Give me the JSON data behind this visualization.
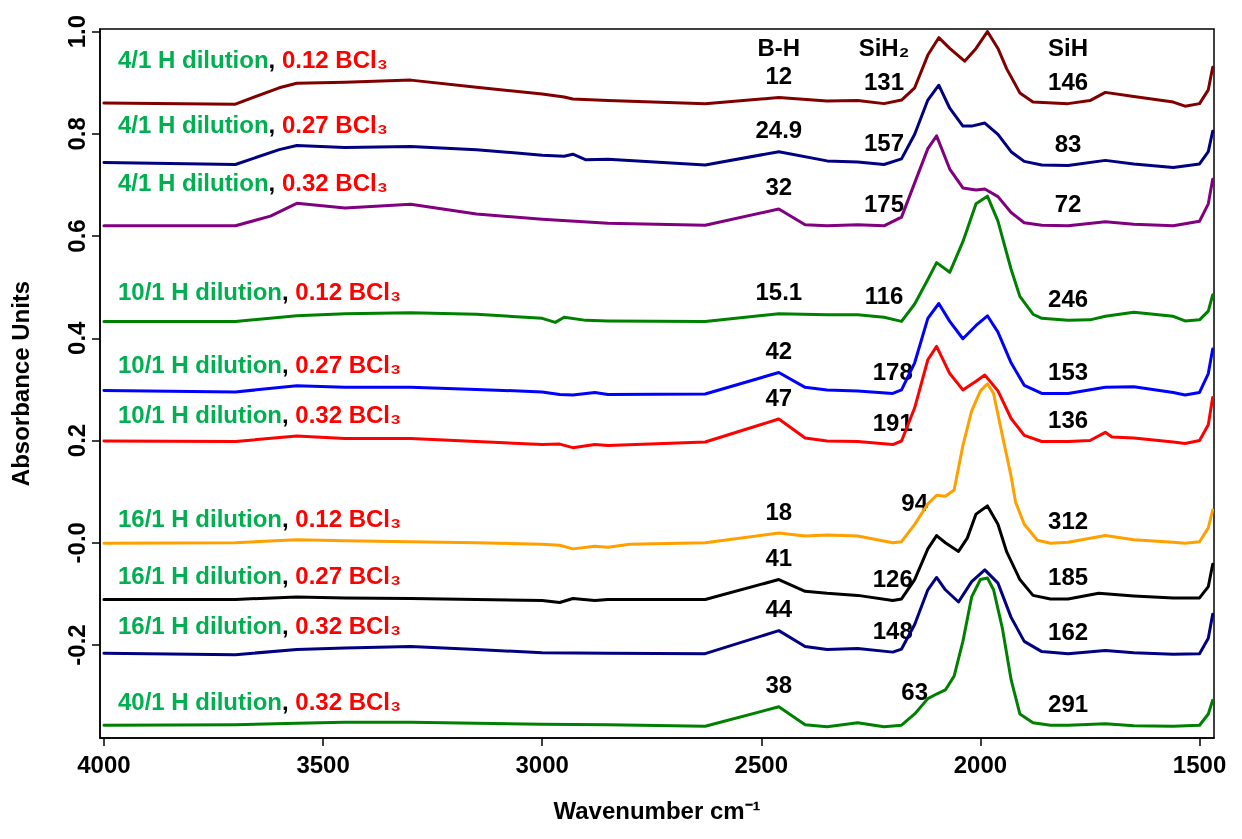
{
  "chart_data": {
    "type": "line",
    "xlabel": "Wavenumber cm⁻¹",
    "ylabel": "Absorbance Units",
    "xlim": [
      4009,
      1467
    ],
    "xticks": [
      4000,
      3500,
      3000,
      2500,
      2000,
      1500
    ],
    "ylim": [
      -0.382,
      1.005
    ],
    "yticks": [
      {
        "value": -0.2,
        "label": "-0.2"
      },
      {
        "value": 0,
        "label": "-0.0"
      },
      {
        "value": 0.2,
        "label": "0.2"
      },
      {
        "value": 0.4,
        "label": "0.4"
      },
      {
        "value": 0.6,
        "label": "0.6"
      },
      {
        "value": 0.8,
        "label": "0.8"
      },
      {
        "value": 1.0,
        "label": "1.0"
      }
    ],
    "grid": false,
    "legend": false,
    "marker": "none",
    "line_style": "solid",
    "series": [
      {
        "name": "4/1 H dilution, 0.12 BCl₃",
        "color": "#800000",
        "x": [
          4000,
          3700,
          3600,
          3560,
          3450,
          3300,
          3150,
          3000,
          2950,
          2930,
          2850,
          2628,
          2460,
          2350,
          2280,
          2220,
          2180,
          2150,
          2120,
          2095,
          2070,
          2036,
          2010,
          1984,
          1960,
          1940,
          1910,
          1880,
          1800,
          1750,
          1715,
          1650,
          1560,
          1533,
          1500,
          1480,
          1470
        ],
        "values": [
          0.86,
          0.858,
          0.89,
          0.899,
          0.901,
          0.905,
          0.891,
          0.878,
          0.872,
          0.868,
          0.865,
          0.859,
          0.871,
          0.864,
          0.865,
          0.859,
          0.866,
          0.89,
          0.954,
          0.988,
          0.967,
          0.942,
          0.967,
          1.0,
          0.967,
          0.927,
          0.88,
          0.862,
          0.859,
          0.865,
          0.881,
          0.873,
          0.862,
          0.854,
          0.859,
          0.886,
          0.93
        ]
      },
      {
        "name": "4/1 H dilution, 0.27 BCl₃",
        "color": "#000080",
        "x": [
          4000,
          3700,
          3600,
          3560,
          3450,
          3300,
          3150,
          3000,
          2950,
          2930,
          2900,
          2850,
          2628,
          2460,
          2350,
          2280,
          2220,
          2180,
          2150,
          2120,
          2095,
          2070,
          2040,
          2020,
          1990,
          1960,
          1930,
          1900,
          1860,
          1800,
          1715,
          1650,
          1560,
          1500,
          1480,
          1470
        ],
        "values": [
          0.744,
          0.74,
          0.769,
          0.777,
          0.773,
          0.775,
          0.769,
          0.758,
          0.756,
          0.76,
          0.749,
          0.75,
          0.739,
          0.765,
          0.747,
          0.745,
          0.74,
          0.751,
          0.799,
          0.866,
          0.895,
          0.85,
          0.815,
          0.815,
          0.821,
          0.799,
          0.765,
          0.746,
          0.739,
          0.738,
          0.748,
          0.741,
          0.734,
          0.741,
          0.765,
          0.805
        ]
      },
      {
        "name": "4/1 H dilution, 0.32 BCl₃",
        "color": "#800080",
        "x": [
          4000,
          3700,
          3620,
          3560,
          3450,
          3300,
          3150,
          3000,
          2850,
          2628,
          2460,
          2400,
          2350,
          2280,
          2220,
          2180,
          2150,
          2120,
          2100,
          2070,
          2040,
          2010,
          1990,
          1960,
          1930,
          1900,
          1860,
          1800,
          1715,
          1650,
          1560,
          1500,
          1480,
          1470
        ],
        "values": [
          0.62,
          0.62,
          0.639,
          0.664,
          0.655,
          0.662,
          0.643,
          0.633,
          0.625,
          0.621,
          0.653,
          0.622,
          0.62,
          0.622,
          0.62,
          0.637,
          0.704,
          0.771,
          0.796,
          0.731,
          0.694,
          0.69,
          0.692,
          0.677,
          0.646,
          0.626,
          0.621,
          0.62,
          0.628,
          0.623,
          0.62,
          0.629,
          0.663,
          0.711
        ]
      },
      {
        "name": "10/1 H dilution, 0.12 BCl₃",
        "color": "#008000",
        "x": [
          4000,
          3700,
          3560,
          3450,
          3300,
          3150,
          3000,
          2970,
          2950,
          2900,
          2850,
          2628,
          2460,
          2350,
          2280,
          2220,
          2180,
          2150,
          2120,
          2100,
          2070,
          2040,
          2010,
          1984,
          1960,
          1930,
          1910,
          1880,
          1860,
          1800,
          1750,
          1715,
          1650,
          1560,
          1533,
          1500,
          1480,
          1470
        ],
        "values": [
          0.433,
          0.433,
          0.444,
          0.448,
          0.45,
          0.447,
          0.439,
          0.431,
          0.441,
          0.435,
          0.434,
          0.433,
          0.448,
          0.446,
          0.446,
          0.441,
          0.433,
          0.467,
          0.515,
          0.548,
          0.529,
          0.589,
          0.663,
          0.678,
          0.629,
          0.535,
          0.482,
          0.447,
          0.439,
          0.435,
          0.436,
          0.443,
          0.451,
          0.443,
          0.434,
          0.436,
          0.453,
          0.485
        ]
      },
      {
        "name": "10/1 H dilution, 0.27 BCl₃",
        "color": "#0000ff",
        "x": [
          4000,
          3700,
          3560,
          3450,
          3300,
          3150,
          3000,
          2960,
          2930,
          2880,
          2850,
          2628,
          2460,
          2400,
          2350,
          2280,
          2200,
          2180,
          2150,
          2120,
          2095,
          2070,
          2040,
          2010,
          1984,
          1960,
          1930,
          1900,
          1860,
          1800,
          1715,
          1650,
          1560,
          1533,
          1500,
          1480,
          1470
        ],
        "values": [
          0.298,
          0.295,
          0.307,
          0.304,
          0.304,
          0.3,
          0.295,
          0.29,
          0.289,
          0.294,
          0.29,
          0.291,
          0.333,
          0.304,
          0.299,
          0.297,
          0.292,
          0.299,
          0.352,
          0.439,
          0.468,
          0.433,
          0.399,
          0.425,
          0.444,
          0.412,
          0.352,
          0.308,
          0.292,
          0.292,
          0.304,
          0.305,
          0.294,
          0.289,
          0.294,
          0.331,
          0.379
        ]
      },
      {
        "name": "10/1 H dilution, 0.32 BCl₃",
        "color": "#ff0000",
        "x": [
          4000,
          3700,
          3560,
          3450,
          3300,
          3150,
          3000,
          2960,
          2930,
          2880,
          2850,
          2628,
          2460,
          2400,
          2350,
          2280,
          2200,
          2180,
          2150,
          2120,
          2100,
          2070,
          2040,
          2010,
          1990,
          1960,
          1930,
          1900,
          1860,
          1800,
          1750,
          1715,
          1700,
          1650,
          1560,
          1533,
          1500,
          1480,
          1470
        ],
        "values": [
          0.199,
          0.198,
          0.209,
          0.204,
          0.204,
          0.198,
          0.192,
          0.193,
          0.186,
          0.192,
          0.19,
          0.197,
          0.242,
          0.205,
          0.199,
          0.198,
          0.192,
          0.199,
          0.264,
          0.358,
          0.384,
          0.331,
          0.299,
          0.316,
          0.328,
          0.297,
          0.243,
          0.21,
          0.198,
          0.198,
          0.2,
          0.216,
          0.207,
          0.205,
          0.197,
          0.194,
          0.2,
          0.231,
          0.284
        ]
      },
      {
        "name": "16/1 H dilution, 0.12 BCl₃",
        "color": "#ffa000",
        "x": [
          4000,
          3700,
          3560,
          3450,
          3300,
          3150,
          3000,
          2960,
          2930,
          2880,
          2850,
          2800,
          2628,
          2460,
          2400,
          2350,
          2280,
          2200,
          2180,
          2150,
          2120,
          2100,
          2080,
          2060,
          2040,
          2020,
          2000,
          1984,
          1970,
          1950,
          1930,
          1920,
          1900,
          1870,
          1840,
          1800,
          1715,
          1650,
          1560,
          1533,
          1500,
          1480,
          1470
        ],
        "values": [
          -0.001,
          0.0,
          0.006,
          0.004,
          0.002,
          0.0,
          -0.003,
          -0.005,
          -0.012,
          -0.007,
          -0.009,
          -0.003,
          0.0,
          0.019,
          0.013,
          0.015,
          0.013,
          0.0,
          0.002,
          0.036,
          0.076,
          0.093,
          0.091,
          0.103,
          0.19,
          0.258,
          0.297,
          0.311,
          0.292,
          0.21,
          0.13,
          0.08,
          0.036,
          0.005,
          -0.001,
          0.001,
          0.014,
          0.006,
          0.001,
          -0.001,
          0.002,
          0.029,
          0.064
        ]
      },
      {
        "name": "16/1 H dilution, 0.27 BCl₃",
        "color": "#000000",
        "x": [
          4000,
          3700,
          3560,
          3450,
          3300,
          3150,
          3000,
          2960,
          2930,
          2880,
          2850,
          2628,
          2460,
          2400,
          2350,
          2280,
          2200,
          2180,
          2150,
          2120,
          2100,
          2080,
          2050,
          2030,
          2010,
          1984,
          1960,
          1940,
          1910,
          1880,
          1840,
          1800,
          1730,
          1650,
          1560,
          1500,
          1480,
          1470
        ],
        "values": [
          -0.111,
          -0.111,
          -0.106,
          -0.108,
          -0.109,
          -0.111,
          -0.113,
          -0.117,
          -0.109,
          -0.113,
          -0.111,
          -0.111,
          -0.072,
          -0.095,
          -0.099,
          -0.103,
          -0.113,
          -0.11,
          -0.072,
          -0.012,
          0.014,
          0.0,
          -0.017,
          0.009,
          0.056,
          0.072,
          0.036,
          -0.018,
          -0.072,
          -0.103,
          -0.11,
          -0.11,
          -0.099,
          -0.104,
          -0.108,
          -0.108,
          -0.086,
          -0.042
        ]
      },
      {
        "name": "16/1 H dilution, 0.32 BCl₃",
        "color": "#000080",
        "x": [
          4000,
          3700,
          3560,
          3450,
          3300,
          3150,
          3000,
          2850,
          2628,
          2460,
          2400,
          2350,
          2280,
          2200,
          2180,
          2150,
          2120,
          2100,
          2080,
          2050,
          2020,
          1990,
          1960,
          1930,
          1900,
          1860,
          1800,
          1715,
          1650,
          1560,
          1500,
          1480,
          1470
        ],
        "values": [
          -0.216,
          -0.219,
          -0.209,
          -0.206,
          -0.203,
          -0.209,
          -0.215,
          -0.216,
          -0.217,
          -0.172,
          -0.203,
          -0.209,
          -0.207,
          -0.214,
          -0.208,
          -0.16,
          -0.092,
          -0.068,
          -0.092,
          -0.116,
          -0.076,
          -0.053,
          -0.079,
          -0.146,
          -0.193,
          -0.213,
          -0.217,
          -0.211,
          -0.215,
          -0.218,
          -0.217,
          -0.187,
          -0.14
        ]
      },
      {
        "name": "40/1 H dilution, 0.32 BCl₃",
        "color": "#008000",
        "x": [
          4000,
          3700,
          3560,
          3450,
          3300,
          3150,
          3000,
          2850,
          2628,
          2460,
          2400,
          2350,
          2280,
          2220,
          2180,
          2150,
          2120,
          2100,
          2080,
          2060,
          2040,
          2020,
          2000,
          1984,
          1970,
          1950,
          1930,
          1910,
          1880,
          1840,
          1800,
          1715,
          1650,
          1560,
          1500,
          1480,
          1470
        ],
        "values": [
          -0.357,
          -0.356,
          -0.353,
          -0.351,
          -0.351,
          -0.353,
          -0.355,
          -0.356,
          -0.359,
          -0.321,
          -0.356,
          -0.36,
          -0.352,
          -0.36,
          -0.357,
          -0.335,
          -0.305,
          -0.296,
          -0.288,
          -0.261,
          -0.193,
          -0.106,
          -0.072,
          -0.069,
          -0.092,
          -0.167,
          -0.268,
          -0.335,
          -0.352,
          -0.357,
          -0.357,
          -0.354,
          -0.358,
          -0.359,
          -0.357,
          -0.335,
          -0.308
        ]
      }
    ],
    "annotations": [
      "B-H",
      "SiH₂",
      "SiH",
      {
        "text": "12",
        "x": 2460,
        "y": 0.871
      },
      {
        "text": "131",
        "x": 2220,
        "y": 0.859
      },
      {
        "text": "146",
        "x": 1800,
        "y": 0.859
      },
      {
        "text": "24.9",
        "x": 2460,
        "y": 0.765
      },
      {
        "text": "157",
        "x": 2220,
        "y": 0.74
      },
      {
        "text": "83",
        "x": 1800,
        "y": 0.738
      },
      {
        "text": "32",
        "x": 2460,
        "y": 0.653
      },
      {
        "text": "175",
        "x": 2220,
        "y": 0.62
      },
      {
        "text": "72",
        "x": 1800,
        "y": 0.62
      },
      {
        "text": "15.1",
        "x": 2460,
        "y": 0.448
      },
      {
        "text": "116",
        "x": 2220,
        "y": 0.441
      },
      {
        "text": "246",
        "x": 1800,
        "y": 0.435
      },
      {
        "text": "42",
        "x": 2460,
        "y": 0.333
      },
      {
        "text": "178",
        "x": 2200,
        "y": 0.292
      },
      {
        "text": "153",
        "x": 1800,
        "y": 0.292
      },
      {
        "text": "47",
        "x": 2460,
        "y": 0.242
      },
      {
        "text": "191",
        "x": 2200,
        "y": 0.192
      },
      {
        "text": "136",
        "x": 1800,
        "y": 0.198
      },
      {
        "text": "18",
        "x": 2460,
        "y": 0.019
      },
      {
        "text": "94",
        "x": 2150,
        "y": 0.036
      },
      {
        "text": "312",
        "x": 1800,
        "y": 0.001
      },
      {
        "text": "41",
        "x": 2460,
        "y": -0.072
      },
      {
        "text": "126",
        "x": 2200,
        "y": -0.113
      },
      {
        "text": "185",
        "x": 1800,
        "y": -0.11
      },
      {
        "text": "44",
        "x": 2460,
        "y": -0.172
      },
      {
        "text": "148",
        "x": 2200,
        "y": -0.214
      },
      {
        "text": "162",
        "x": 1800,
        "y": -0.217
      },
      {
        "text": "38",
        "x": 2460,
        "y": -0.321
      },
      {
        "text": "63",
        "x": 2150,
        "y": -0.335
      },
      {
        "text": "291",
        "x": 1800,
        "y": -0.357
      }
    ]
  }
}
